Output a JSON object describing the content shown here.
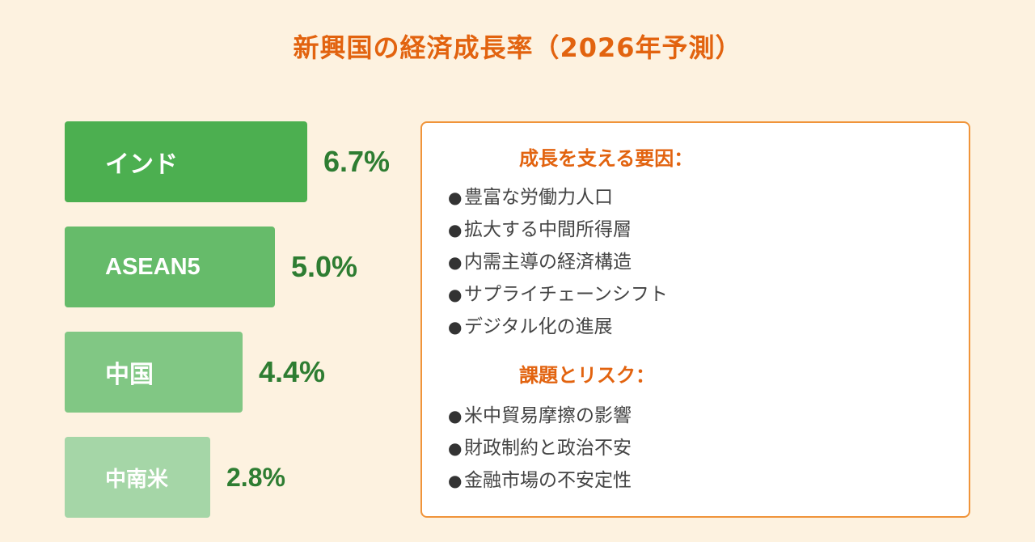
{
  "title": "新興国の経済成長率（2026年予測）",
  "chart_data": {
    "type": "bar",
    "orientation": "horizontal",
    "title": "新興国の経済成長率（2026年予測）",
    "categories": [
      "インド",
      "ASEAN5",
      "中国",
      "中南米"
    ],
    "values": [
      6.7,
      5.0,
      4.4,
      2.8
    ],
    "value_labels": [
      "6.7%",
      "5.0%",
      "4.4%",
      "2.8%"
    ],
    "colors": [
      "#4caf50",
      "#66bb6a",
      "#81c784",
      "#a5d6a7"
    ],
    "value_color": "#2e7d32"
  },
  "panel": {
    "growth_title": "成長を支える要因：",
    "growth_items": [
      "豊富な労働力人口",
      "拡大する中間所得層",
      "内需主導の経済構造",
      "サプライチェーンシフト",
      "デジタル化の進展"
    ],
    "risk_title": "課題とリスク：",
    "risk_items": [
      "米中貿易摩擦の影響",
      "財政制約と政治不安",
      "金融市場の不安定性"
    ],
    "bullet": "●"
  },
  "colors": {
    "accent": "#e2630f",
    "border": "#f0943a",
    "background": "#fdf2e0"
  }
}
